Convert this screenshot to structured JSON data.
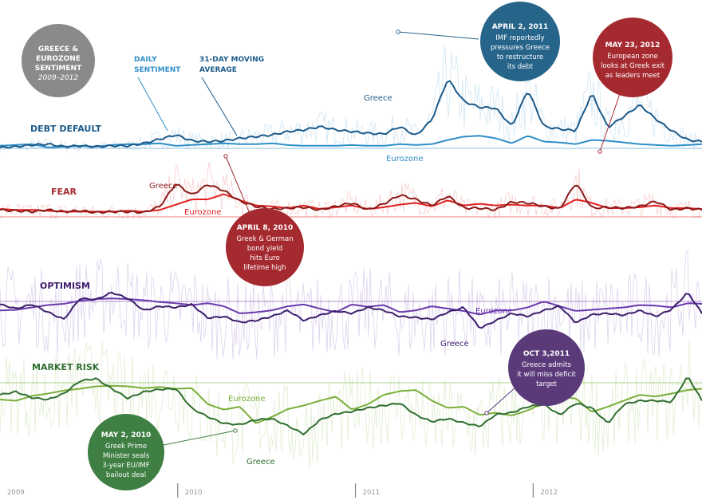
{
  "chart_data": {
    "type": "line",
    "title": "Greece & Eurozone Sentiment",
    "subtitle": "2009–2012",
    "xlabel": "",
    "ylabel": "",
    "x_range": [
      2009.0,
      2012.95
    ],
    "x_ticks": [
      {
        "value": 2009,
        "label": "2009"
      },
      {
        "value": 2010,
        "label": "2010"
      },
      {
        "value": 2011,
        "label": "2011"
      },
      {
        "value": 2012,
        "label": "2012"
      }
    ],
    "legend": {
      "daily": "DAILY SENTIMENT",
      "average": "31-DAY MOVING AVERAGE"
    },
    "grid": false,
    "sample_x": [
      2009.0,
      2009.09,
      2009.18,
      2009.27,
      2009.36,
      2009.45,
      2009.54,
      2009.63,
      2009.72,
      2009.81,
      2009.9,
      2009.99,
      2010.08,
      2010.17,
      2010.26,
      2010.35,
      2010.44,
      2010.53,
      2010.62,
      2010.71,
      2010.8,
      2010.89,
      2010.98,
      2011.07,
      2011.16,
      2011.25,
      2011.34,
      2011.43,
      2011.52,
      2011.61,
      2011.7,
      2011.79,
      2011.88,
      2011.97,
      2012.06,
      2012.15,
      2012.24,
      2012.33,
      2012.42,
      2012.51,
      2012.6,
      2012.69,
      2012.78,
      2012.87,
      2012.95
    ],
    "panels": [
      {
        "name": "DEBT DEFAULT",
        "color": "#1b5a8a",
        "color_light": "#2f8fc8",
        "value_range": [
          0,
          10
        ],
        "series": [
          {
            "name": "Greece",
            "values": [
              0.1,
              0.2,
              0.4,
              0.5,
              0.2,
              0.3,
              0.2,
              0.3,
              0.3,
              0.6,
              1.1,
              1.6,
              0.9,
              0.8,
              0.9,
              1.2,
              1.4,
              1.6,
              2.0,
              2.2,
              2.6,
              2.2,
              2.0,
              1.8,
              1.7,
              2.6,
              1.5,
              3.4,
              8.3,
              5.6,
              4.9,
              4.8,
              2.6,
              7.0,
              2.6,
              2.3,
              2.1,
              6.6,
              2.5,
              3.8,
              5.2,
              3.5,
              2.1,
              1.0,
              0.8
            ]
          },
          {
            "name": "Eurozone",
            "values": [
              0.3,
              0.4,
              0.5,
              0.1,
              0.2,
              0.3,
              0.2,
              0.4,
              0.5,
              0.5,
              0.6,
              0.3,
              0.4,
              0.5,
              0.6,
              0.5,
              0.5,
              0.6,
              0.4,
              0.3,
              0.3,
              0.3,
              0.4,
              0.3,
              0.3,
              0.5,
              0.4,
              0.5,
              1.0,
              1.4,
              1.5,
              1.2,
              0.6,
              1.5,
              0.8,
              0.7,
              0.5,
              1.0,
              0.9,
              0.7,
              0.5,
              0.4,
              0.3,
              0.4,
              0.5
            ]
          }
        ],
        "labels": {
          "greece": "Greece",
          "eurozone": "Eurozone"
        }
      },
      {
        "name": "FEAR",
        "color": "#8b1a1a",
        "color_light": "#e02020",
        "value_range": [
          0,
          10
        ],
        "series": [
          {
            "name": "Greece",
            "values": [
              0.8,
              0.7,
              0.6,
              0.8,
              0.6,
              0.7,
              0.5,
              0.6,
              0.6,
              0.5,
              1.2,
              3.8,
              2.5,
              3.7,
              3.0,
              1.8,
              1.2,
              0.9,
              1.0,
              1.1,
              0.8,
              1.2,
              1.6,
              0.8,
              1.5,
              2.5,
              2.0,
              1.3,
              2.4,
              1.0,
              1.0,
              0.8,
              1.7,
              1.6,
              1.2,
              0.9,
              3.9,
              1.0,
              1.1,
              1.0,
              1.2,
              1.8,
              0.8,
              1.0,
              0.8
            ]
          },
          {
            "name": "Eurozone",
            "values": [
              0.9,
              0.8,
              0.8,
              0.7,
              0.6,
              0.6,
              0.6,
              0.6,
              0.7,
              0.6,
              0.8,
              1.4,
              2.0,
              2.0,
              2.6,
              1.9,
              1.3,
              1.2,
              1.0,
              1.3,
              0.9,
              1.1,
              1.3,
              0.9,
              1.1,
              1.4,
              1.6,
              1.2,
              1.9,
              1.3,
              1.5,
              1.3,
              1.4,
              1.3,
              1.3,
              1.0,
              2.0,
              1.6,
              1.0,
              1.0,
              1.1,
              1.3,
              1.0,
              1.0,
              0.9
            ]
          }
        ],
        "labels": {
          "greece": "Greece",
          "eurozone": "Eurozone"
        }
      },
      {
        "name": "OPTIMISM",
        "color": "#3d1d6b",
        "color_light": "#6a3aad",
        "value_range": [
          -10,
          10
        ],
        "series": [
          {
            "name": "Greece",
            "values": [
              -0.5,
              -1.2,
              -0.5,
              -1.8,
              -3.0,
              0.5,
              0.3,
              1.5,
              0.5,
              -1.5,
              -0.8,
              -1.0,
              -0.5,
              -2.8,
              -2.5,
              -3.5,
              -3.2,
              -2.5,
              -1.5,
              -3.2,
              -2.3,
              -1.6,
              -2.0,
              -1.0,
              -1.5,
              -2.5,
              -2.7,
              -3.0,
              -1.8,
              -1.0,
              -4.5,
              -3.2,
              -2.0,
              -2.5,
              -1.5,
              -0.8,
              -3.6,
              -2.2,
              -2.0,
              -2.3,
              -1.5,
              -2.5,
              -1.3,
              1.5,
              -2.0
            ]
          },
          {
            "name": "Eurozone",
            "values": [
              -1.5,
              -1.4,
              -1.0,
              -0.6,
              -0.4,
              0.1,
              0.4,
              0.5,
              0.4,
              0.2,
              -0.1,
              -0.3,
              -0.6,
              -0.3,
              -0.8,
              -2.0,
              -1.8,
              -1.5,
              -0.8,
              -0.5,
              -1.2,
              -1.8,
              -0.5,
              -0.9,
              -0.6,
              -1.8,
              -1.5,
              -0.8,
              -1.2,
              -1.6,
              -2.2,
              -1.5,
              -1.5,
              -1.0,
              0.0,
              -0.8,
              -1.6,
              -1.4,
              -1.2,
              -1.0,
              -0.6,
              -0.7,
              -1.0,
              -0.3,
              -0.4
            ]
          }
        ],
        "labels": {
          "greece": "Greece",
          "eurozone": "Eurozone"
        }
      },
      {
        "name": "MARKET RISK",
        "color": "#2f6e2f",
        "color_light": "#7aae3a",
        "value_range": [
          -10,
          10
        ],
        "series": [
          {
            "name": "Greece",
            "values": [
              -2.0,
              -1.5,
              -2.5,
              -2.8,
              -1.8,
              0.3,
              0.7,
              -1.0,
              -2.6,
              -1.5,
              -1.1,
              -1.0,
              -4.3,
              -5.7,
              -6.8,
              -7.0,
              -6.2,
              -6.0,
              -7.2,
              -8.6,
              -6.2,
              -5.2,
              -4.8,
              -4.2,
              -3.8,
              -3.4,
              -5.4,
              -6.5,
              -6.0,
              -6.7,
              -7.3,
              -5.3,
              -5.0,
              -4.0,
              -3.6,
              -5.4,
              -3.4,
              -4.2,
              -6.8,
              -3.6,
              -3.0,
              -3.0,
              -3.2,
              1.1,
              -3.0
            ]
          },
          {
            "name": "Eurozone",
            "values": [
              -2.8,
              -3.0,
              -2.2,
              -1.8,
              -1.3,
              -1.0,
              -0.6,
              -0.5,
              -0.6,
              -0.9,
              -0.7,
              -1.0,
              -0.9,
              -3.6,
              -4.5,
              -4.0,
              -6.8,
              -5.7,
              -4.4,
              -3.8,
              -3.0,
              -2.3,
              -4.5,
              -3.6,
              -2.0,
              -1.4,
              -1.2,
              -3.0,
              -4.2,
              -4.0,
              -5.4,
              -5.0,
              -5.5,
              -4.6,
              -3.4,
              -2.4,
              -2.6,
              -4.9,
              -4.0,
              -3.0,
              -2.0,
              -2.3,
              -1.8,
              -1.2,
              -1.0
            ]
          }
        ],
        "labels": {
          "greece": "Greece",
          "eurozone": "Eurozone"
        }
      }
    ],
    "annotations": [
      {
        "date": "APRIL 2, 2011",
        "panel": "DEBT DEFAULT",
        "lines": [
          "IMF reportedly",
          "pressures Greece",
          "to restructure",
          "its debt"
        ],
        "color": "#27648a"
      },
      {
        "date": "MAY 23, 2012",
        "panel": "DEBT DEFAULT",
        "lines": [
          "European zone",
          "looks at Greek exit",
          "as leaders meet"
        ],
        "color": "#a52a2f"
      },
      {
        "date": "APRIL 8, 2010",
        "panel": "FEAR",
        "lines": [
          "Greek & German",
          "bond yield",
          "hits Euro",
          "lifetime high"
        ],
        "color": "#a52a2f"
      },
      {
        "date": "OCT 3,2011",
        "panel": "OPTIMISM",
        "lines": [
          "Greece admits",
          "it will miss deficit",
          "target"
        ],
        "color": "#5b3a7a"
      },
      {
        "date": "MAY 2, 2010",
        "panel": "MARKET RISK",
        "lines": [
          "Greek Prime",
          "Minister seals",
          "3-year EU/IMF",
          "bailout deal"
        ],
        "color": "#3f7f43"
      }
    ]
  },
  "title_badge": {
    "line1": "GREECE &",
    "line2": "EUROZONE",
    "line3": "SENTIMENT",
    "line4": "2009–2012",
    "color": "#8a8a8a"
  }
}
